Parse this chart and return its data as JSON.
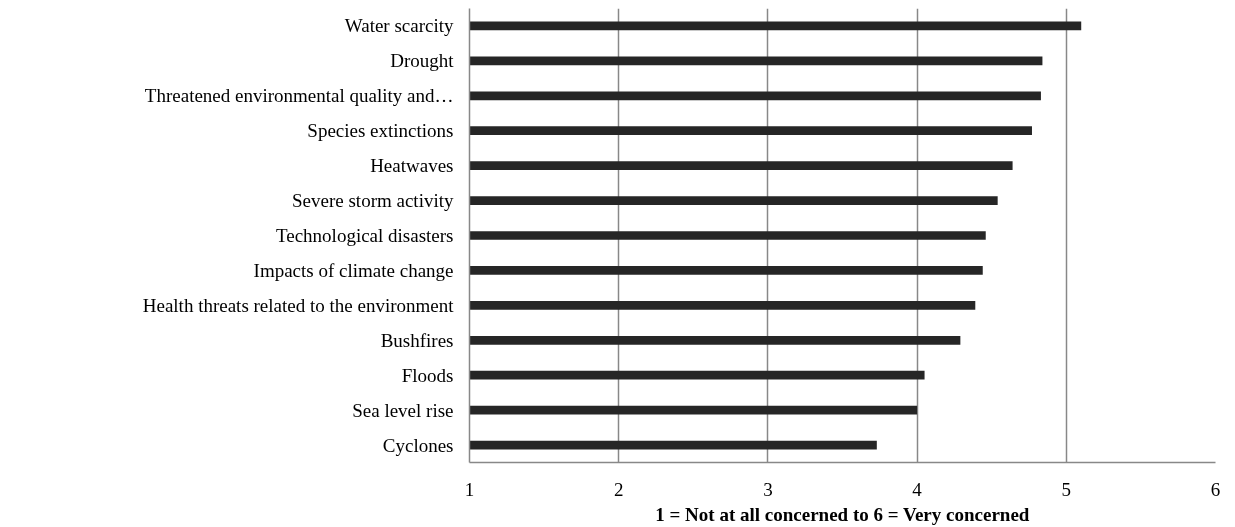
{
  "chart_data": {
    "type": "bar",
    "orientation": "horizontal",
    "xlabel": "1 = Not at all concerned to 6 = Very concerned",
    "categories": [
      "Water scarcity",
      "Drought",
      "Threatened environmental quality and…",
      "Species extinctions",
      "Heatwaves",
      "Severe storm activity",
      "Technological disasters",
      "Impacts of climate change",
      "Health threats related to the environment",
      "Bushfires",
      "Floods",
      "Sea level rise",
      "Cyclones"
    ],
    "values": [
      5.1,
      4.84,
      4.83,
      4.77,
      4.64,
      4.54,
      4.46,
      4.44,
      4.39,
      4.29,
      4.05,
      4.0,
      3.73
    ],
    "color": "#262626",
    "xlim": [
      1,
      6
    ],
    "xticks": [
      1,
      2,
      3,
      4,
      5,
      6
    ],
    "grid": "x"
  }
}
